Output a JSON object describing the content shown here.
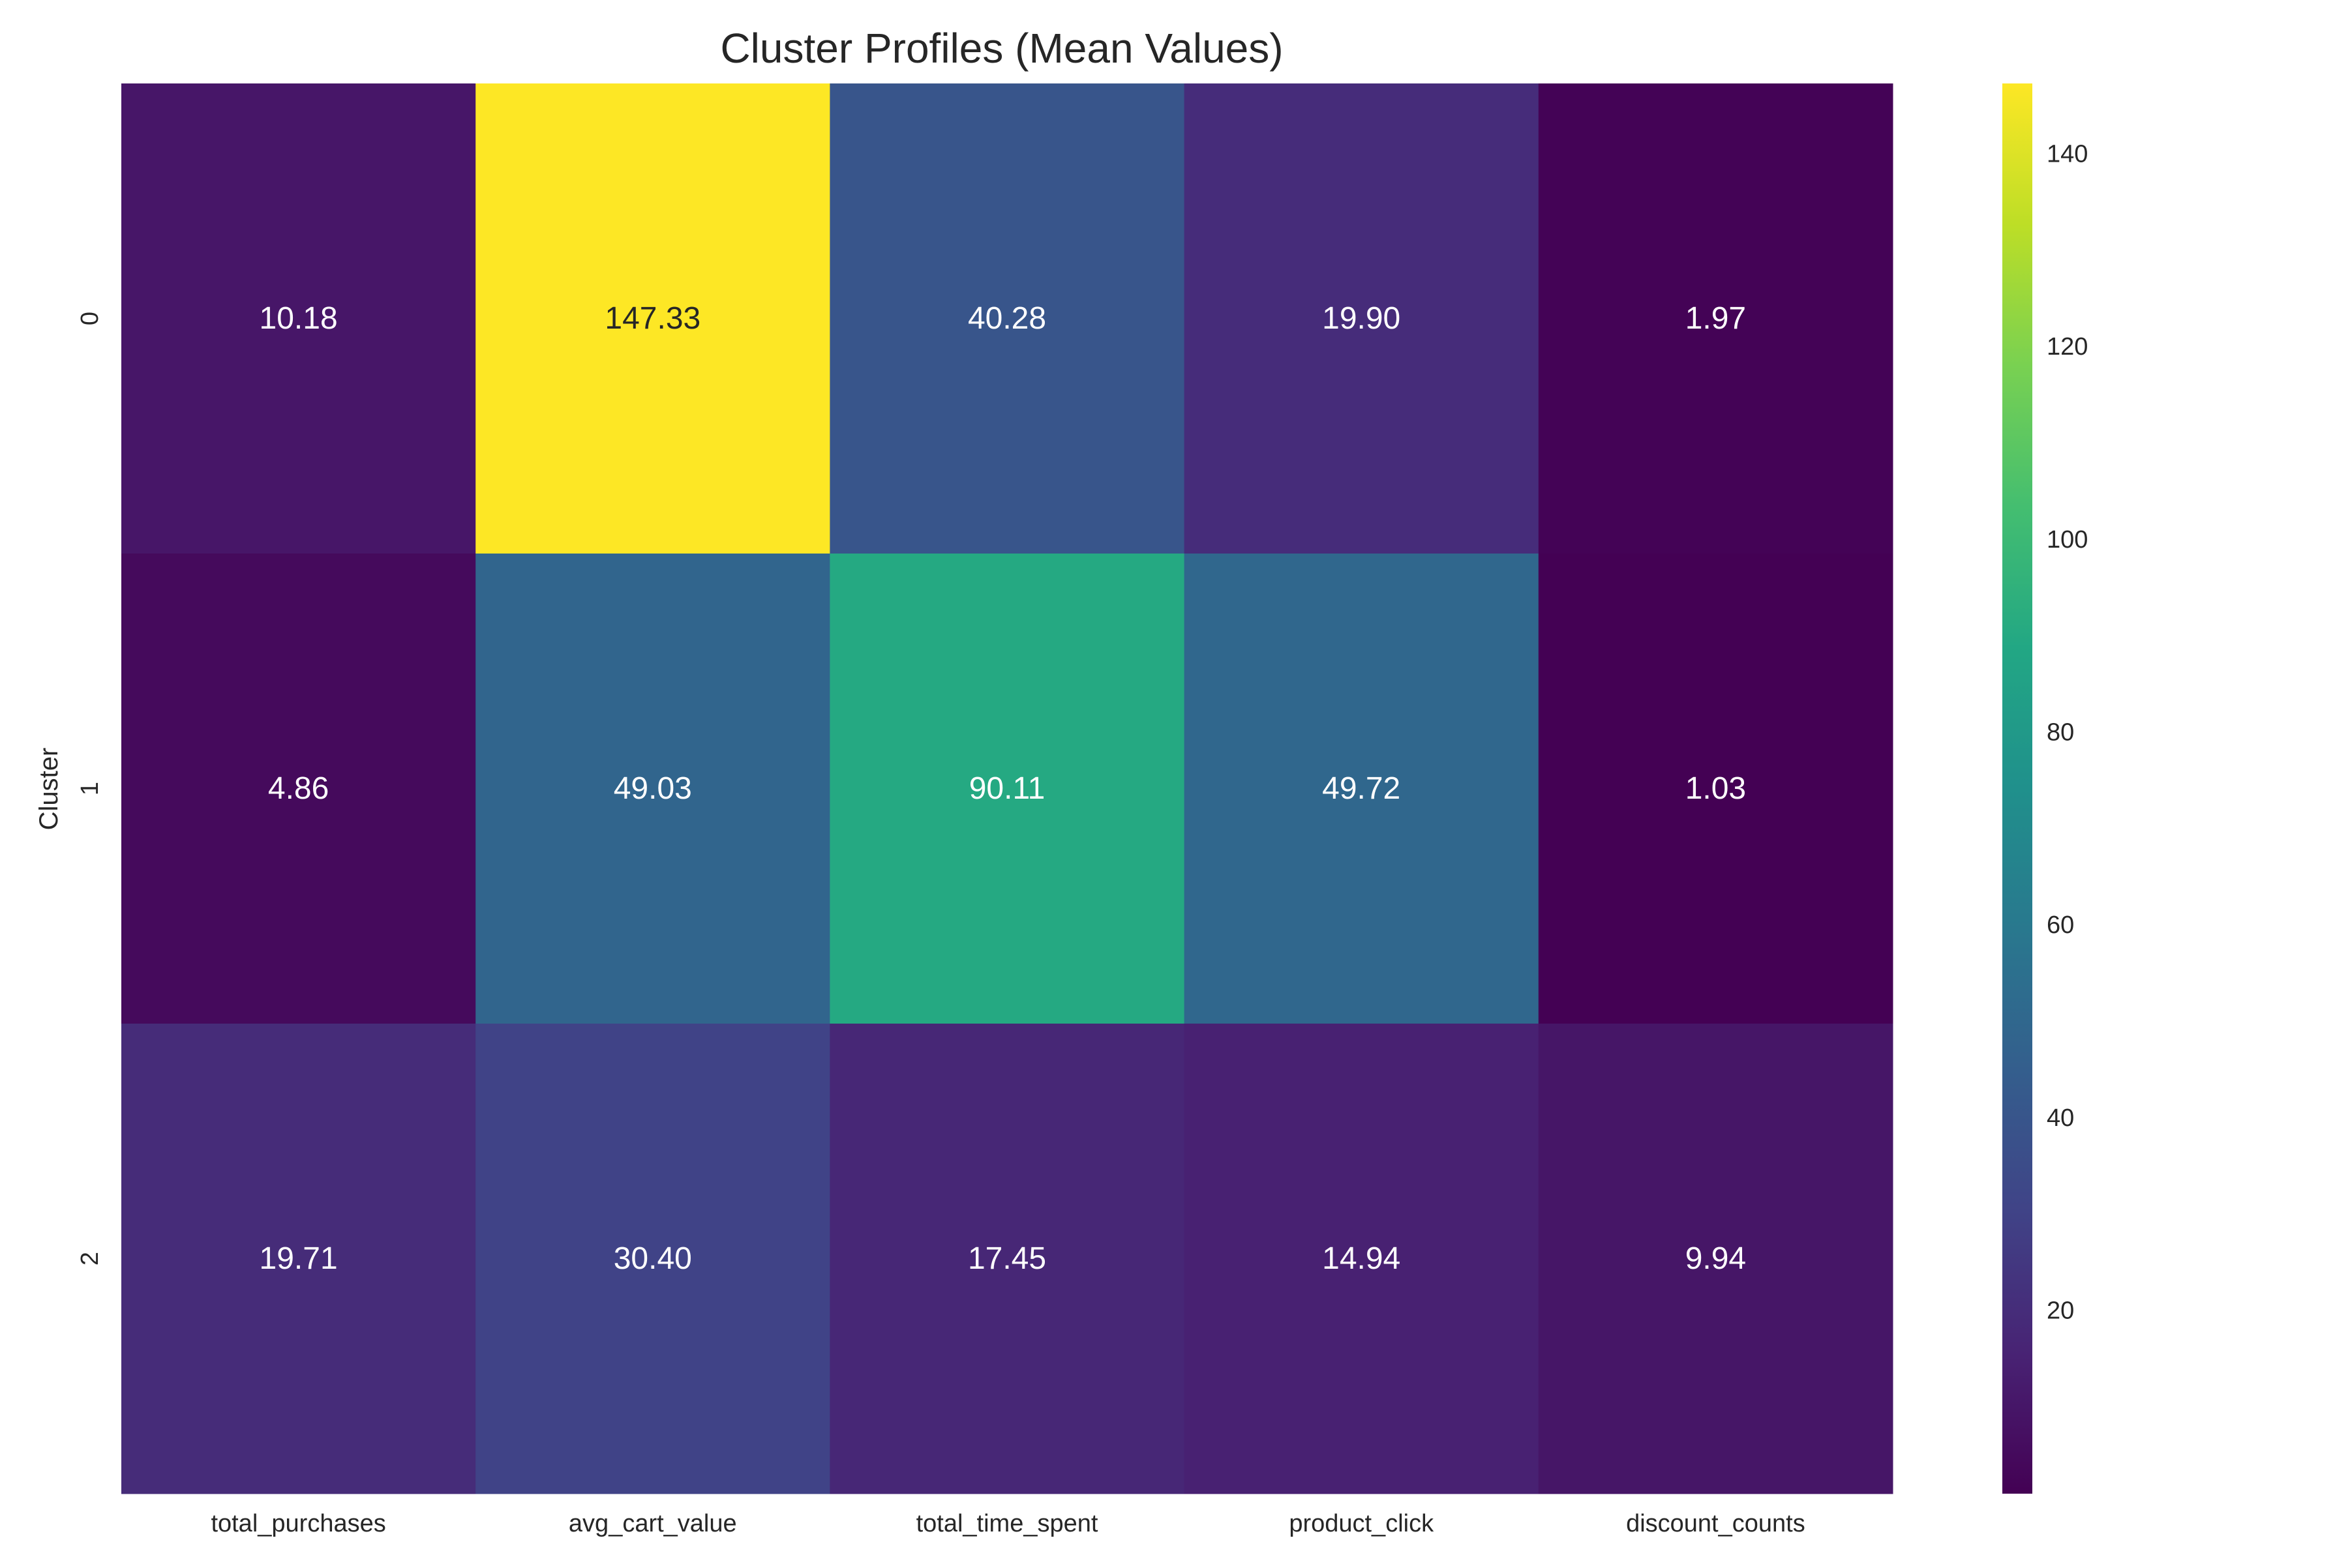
{
  "chart_data": {
    "type": "heatmap",
    "title": "Cluster Profiles (Mean Values)",
    "ylabel": "Cluster",
    "xlabel": "",
    "x_categories": [
      "total_purchases",
      "avg_cart_value",
      "total_time_spent",
      "product_click",
      "discount_counts"
    ],
    "y_categories": [
      "0",
      "1",
      "2"
    ],
    "values": [
      [
        10.18,
        147.33,
        40.28,
        19.9,
        1.97
      ],
      [
        4.86,
        49.03,
        90.11,
        49.72,
        1.03
      ],
      [
        19.71,
        30.4,
        17.45,
        14.94,
        9.94
      ]
    ],
    "value_format": "0.00",
    "colormap": "viridis",
    "color_range": [
      1.03,
      147.33
    ],
    "colorbar_ticks": [
      "20",
      "40",
      "60",
      "80",
      "100",
      "120",
      "140"
    ],
    "grid": false,
    "colorbar_position": "right"
  }
}
